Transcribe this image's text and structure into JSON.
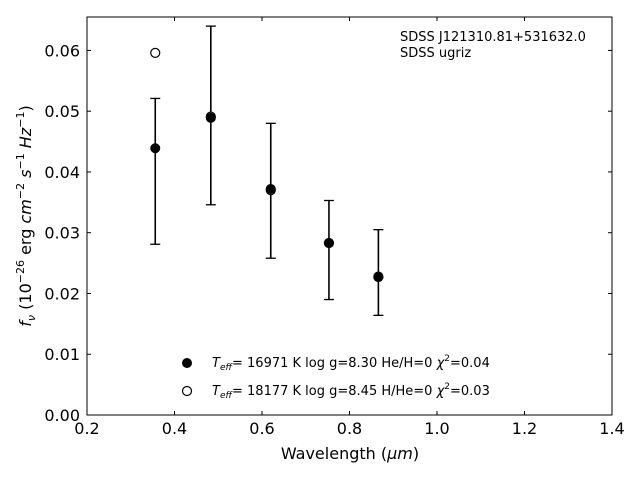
{
  "chart_data": {
    "type": "scatter",
    "xlabel": "Wavelength (",
    "xlabel_unit": "μm",
    "xlabel_close": ")",
    "ylabel_prefix": "f",
    "ylabel_sub": "ν",
    "ylabel_pre_units": " (10",
    "ylabel_exp": "−26",
    "ylabel_units_erg": " erg ",
    "ylabel_cm": "cm",
    "ylabel_cm_exp": "−2",
    "ylabel_s": " s",
    "ylabel_s_exp": "−1",
    "ylabel_hz": " Hz",
    "ylabel_hz_exp": "−1",
    "ylabel_close": ")",
    "xlim": [
      0.2,
      1.4
    ],
    "ylim": [
      0.0,
      0.0655
    ],
    "xticks": [
      0.2,
      0.4,
      0.6,
      0.8,
      1.0,
      1.2,
      1.4
    ],
    "xtick_labels": [
      "0.2",
      "0.4",
      "0.6",
      "0.8",
      "1.0",
      "1.2",
      "1.4"
    ],
    "yticks": [
      0.0,
      0.01,
      0.02,
      0.03,
      0.04,
      0.05,
      0.06
    ],
    "ytick_labels": [
      "0.00",
      "0.01",
      "0.02",
      "0.03",
      "0.04",
      "0.05",
      "0.06"
    ],
    "grid": false,
    "annotations": [
      "SDSS J121310.81+531632.0",
      "SDSS ugriz"
    ],
    "error_bars": [
      {
        "x": 0.356,
        "low": 0.0281,
        "high": 0.0521
      },
      {
        "x": 0.483,
        "low": 0.0346,
        "high": 0.064
      },
      {
        "x": 0.62,
        "low": 0.0258,
        "high": 0.048
      },
      {
        "x": 0.753,
        "low": 0.019,
        "high": 0.0353
      },
      {
        "x": 0.866,
        "low": 0.0164,
        "high": 0.0305
      }
    ],
    "series": [
      {
        "style": "filled",
        "legend": {
          "teff": "= 16971 K  log g=8.30  He/H=0  ",
          "chi": "=0.04"
        },
        "x": [
          0.356,
          0.483,
          0.62,
          0.753,
          0.866
        ],
        "y": [
          0.0439,
          0.0489,
          0.0372,
          0.0283,
          0.0228
        ]
      },
      {
        "style": "open",
        "legend": {
          "teff": "= 18177 K  log g=8.45  H/He=0  ",
          "chi": "=0.03"
        },
        "x": [
          0.356,
          0.483,
          0.62,
          0.753,
          0.866
        ],
        "y": [
          0.0596,
          0.0491,
          0.037,
          0.0283,
          0.0227
        ]
      }
    ],
    "legend_symbol_T": "T",
    "legend_symbol_eff": "eff",
    "legend_symbol_chi": "χ",
    "legend_symbol_chi_exp": "2",
    "legend_location": "lower-center"
  }
}
